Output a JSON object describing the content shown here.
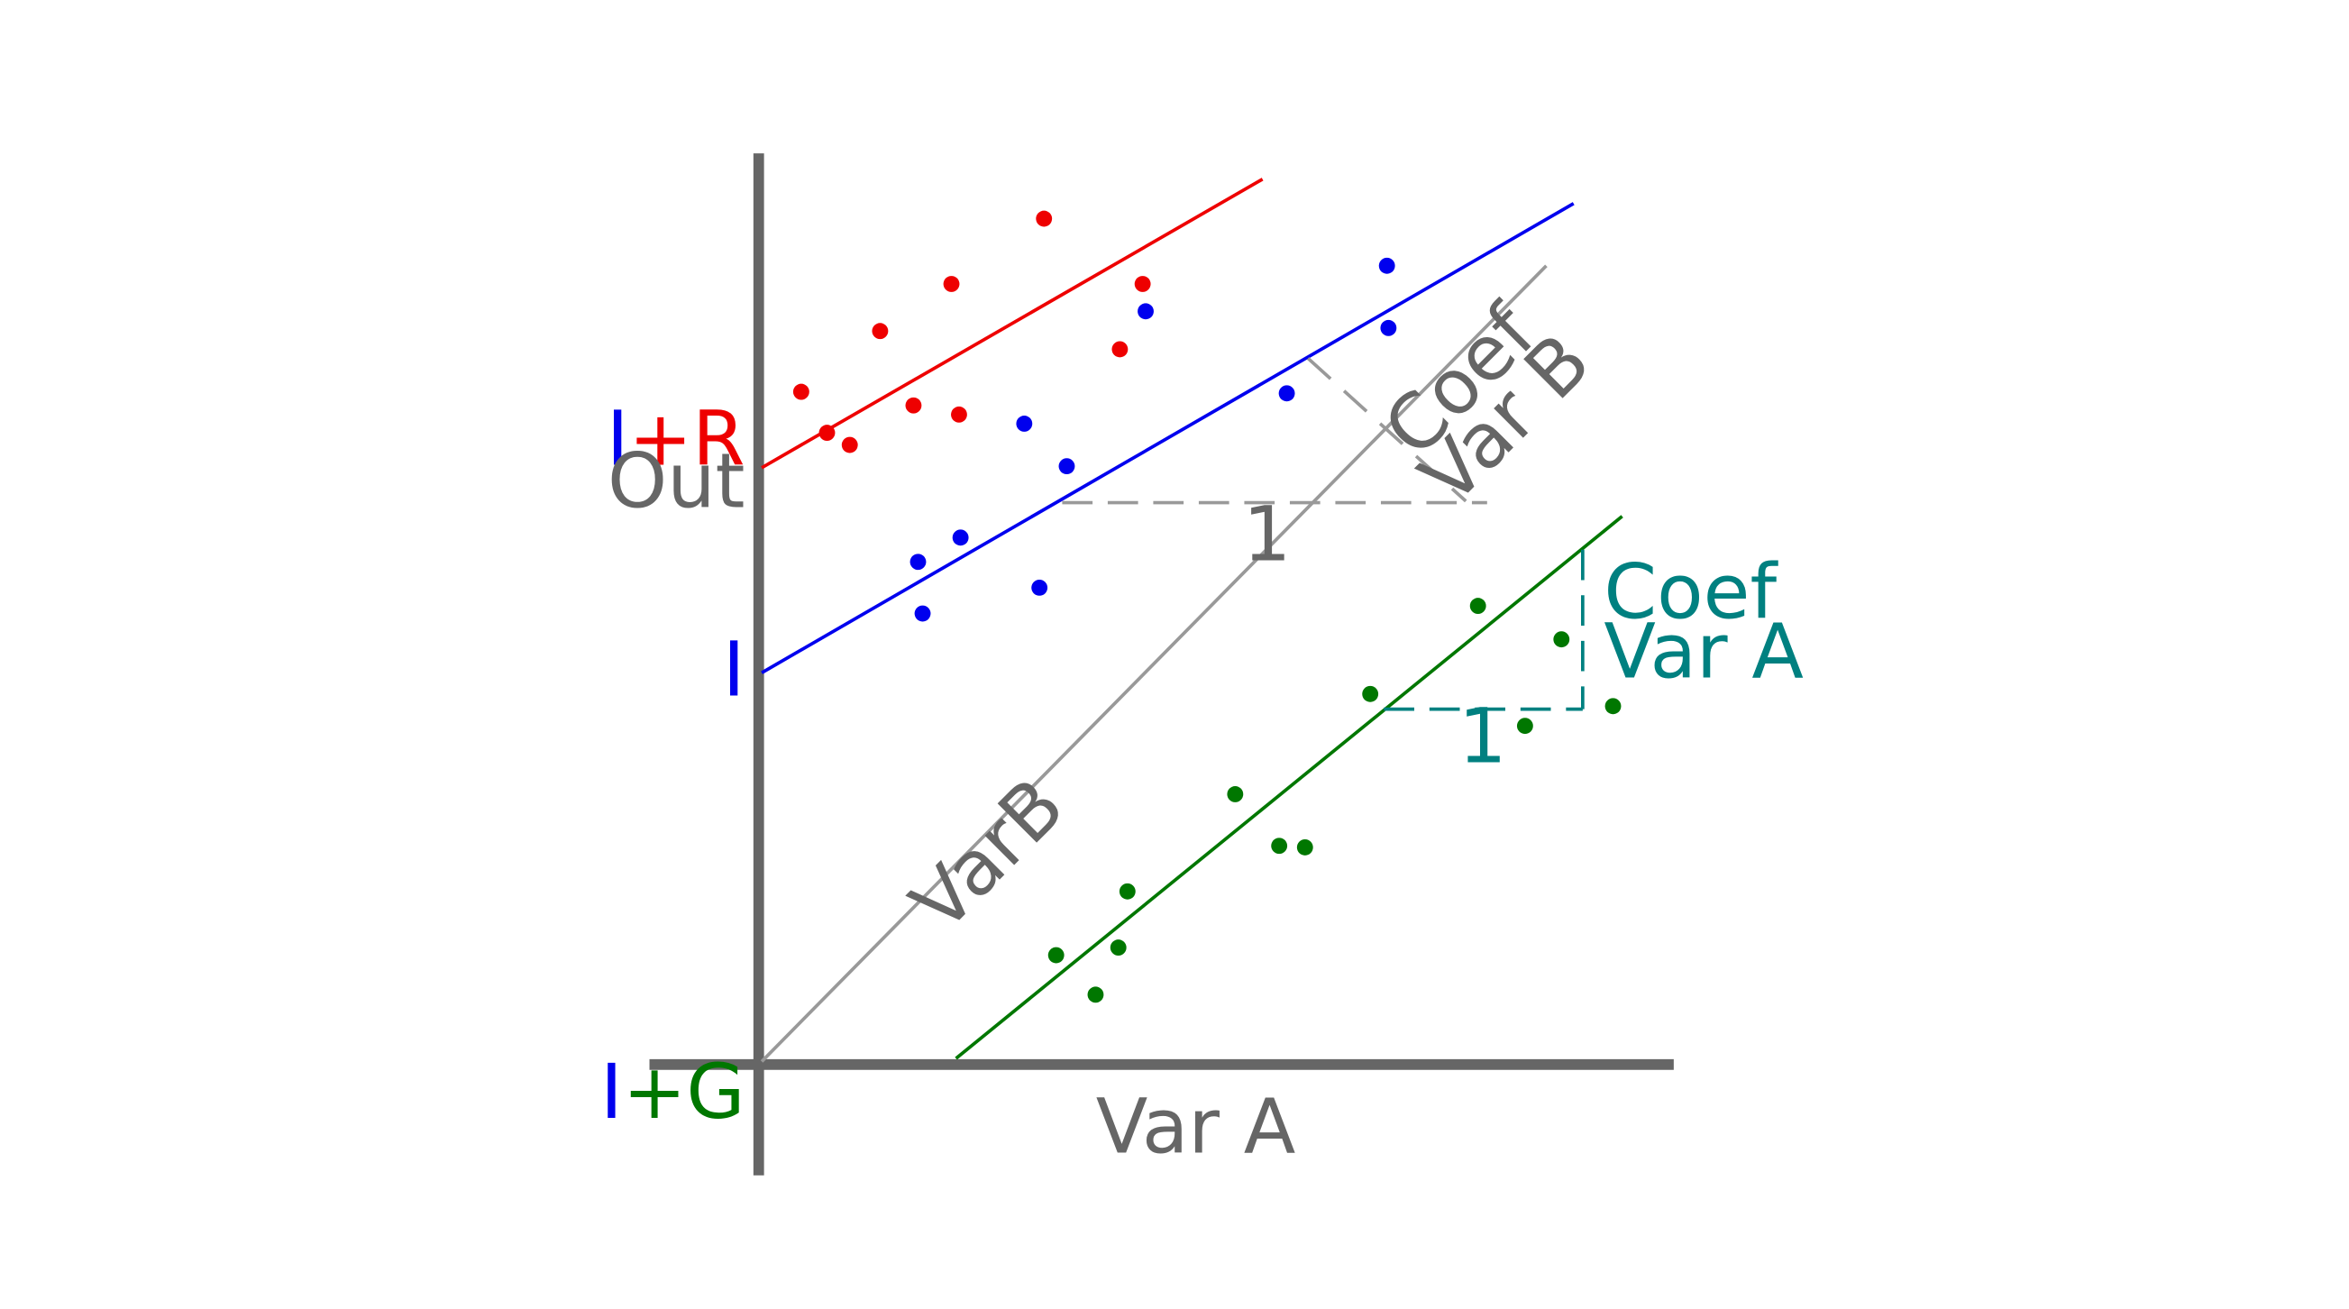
{
  "labels": {
    "intercept_red_i": "I",
    "intercept_red_r": "+R",
    "out": "Out",
    "intercept_blue": "I",
    "intercept_green_i": "I",
    "intercept_green_g": "+G",
    "var_a": "Var A",
    "var_b_diag": "VarB",
    "coef_b_line1": "Coef",
    "coef_b_line2": "Var B",
    "coef_b_one": "1",
    "coef_a_line1": "Coef",
    "coef_a_line2": "Var A",
    "coef_a_one": "1"
  },
  "colors": {
    "axis": "#666666",
    "red": "#ee0000",
    "blue": "#0000ee",
    "green": "#007700",
    "gray": "#999999",
    "teal": "#008080",
    "text_gray": "#666666"
  },
  "groups": [
    {
      "name": "I+R",
      "color": "red",
      "points": [
        [
          528,
          258
        ],
        [
          545,
          285
        ],
        [
          560,
          293
        ],
        [
          580,
          218
        ],
        [
          602,
          267
        ],
        [
          627,
          187
        ],
        [
          632,
          273
        ],
        [
          688,
          144
        ],
        [
          738,
          230
        ],
        [
          753,
          187
        ]
      ]
    },
    {
      "name": "I",
      "color": "blue",
      "points": [
        [
          605,
          370
        ],
        [
          608,
          404
        ],
        [
          633,
          354
        ],
        [
          675,
          279
        ],
        [
          685,
          387
        ],
        [
          703,
          307
        ],
        [
          755,
          205
        ],
        [
          848,
          259
        ],
        [
          914,
          175
        ],
        [
          915,
          216
        ]
      ]
    },
    {
      "name": "I+G",
      "color": "green",
      "points": [
        [
          696,
          629
        ],
        [
          722,
          655
        ],
        [
          737,
          624
        ],
        [
          743,
          587
        ],
        [
          814,
          523
        ],
        [
          843,
          557
        ],
        [
          860,
          558
        ],
        [
          903,
          457
        ],
        [
          974,
          399
        ],
        [
          1005,
          478
        ],
        [
          1029,
          421
        ],
        [
          1063,
          465
        ]
      ]
    }
  ]
}
